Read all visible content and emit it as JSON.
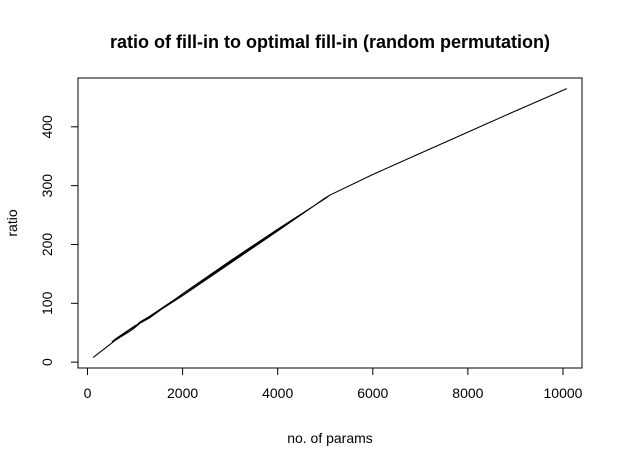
{
  "chart_data": {
    "type": "line",
    "title": "ratio of fill-in to optimal fill-in (random permutation)",
    "xlabel": "no. of params",
    "ylabel": "ratio",
    "xlim": [
      -200,
      10400
    ],
    "ylim": [
      -10,
      483
    ],
    "xticks": [
      {
        "value": 0,
        "label": "0"
      },
      {
        "value": 2000,
        "label": "2000"
      },
      {
        "value": 4000,
        "label": "4000"
      },
      {
        "value": 6000,
        "label": "6000"
      },
      {
        "value": 8000,
        "label": "8000"
      },
      {
        "value": 10000,
        "label": "10000"
      }
    ],
    "yticks": [
      {
        "value": 0,
        "label": "0"
      },
      {
        "value": 100,
        "label": "100"
      },
      {
        "value": 200,
        "label": "200"
      },
      {
        "value": 300,
        "label": "300"
      },
      {
        "value": 400,
        "label": "400"
      }
    ],
    "series": [
      {
        "x": [
          120,
          520,
          580,
          700,
          900,
          1000,
          1100,
          1300,
          2000,
          3000,
          4000,
          5000,
          5050,
          5100,
          5000,
          4000,
          3000,
          2000,
          1500,
          1100,
          1050,
          1000,
          800,
          600,
          520,
          5100,
          6000,
          7000,
          8000,
          9000,
          10080
        ],
        "y": [
          8,
          33,
          37,
          43,
          53,
          59,
          66,
          75,
          116,
          172,
          226,
          278,
          281,
          284,
          279,
          223,
          168,
          113,
          87,
          68,
          64,
          62,
          51,
          40,
          35,
          284,
          319,
          355,
          391,
          427,
          465
        ]
      }
    ]
  }
}
